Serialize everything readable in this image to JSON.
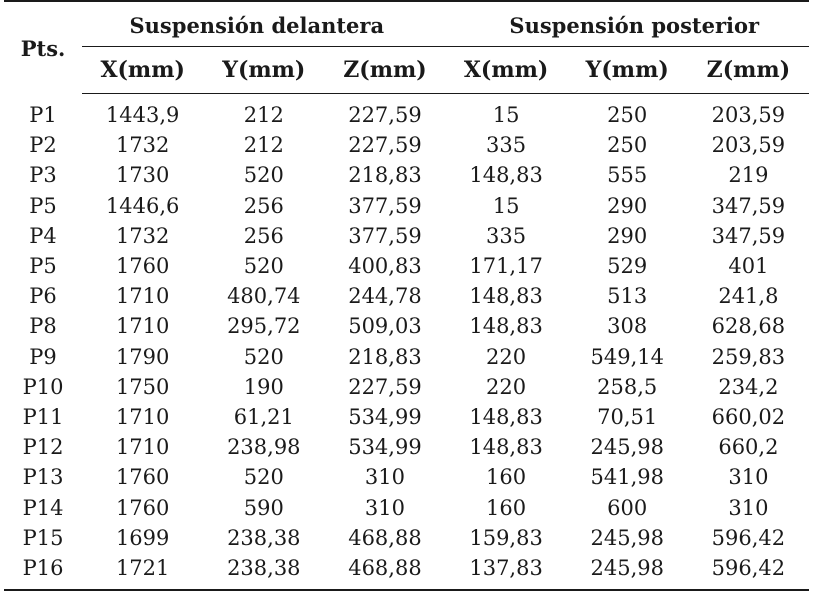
{
  "table": {
    "pts_header": "Pts.",
    "group_front": "Suspensión delantera",
    "group_rear": "Suspensión posterior",
    "sub_headers": [
      "X(mm)",
      "Y(mm)",
      "Z(mm)",
      "X(mm)",
      "Y(mm)",
      "Z(mm)"
    ],
    "rows": [
      [
        "P1",
        "1443,9",
        "212",
        "227,59",
        "15",
        "250",
        "203,59"
      ],
      [
        "P2",
        "1732",
        "212",
        "227,59",
        "335",
        "250",
        "203,59"
      ],
      [
        "P3",
        "1730",
        "520",
        "218,83",
        "148,83",
        "555",
        "219"
      ],
      [
        "P5",
        "1446,6",
        "256",
        "377,59",
        "15",
        "290",
        "347,59"
      ],
      [
        "P4",
        "1732",
        "256",
        "377,59",
        "335",
        "290",
        "347,59"
      ],
      [
        "P5",
        "1760",
        "520",
        "400,83",
        "171,17",
        "529",
        "401"
      ],
      [
        "P6",
        "1710",
        "480,74",
        "244,78",
        "148,83",
        "513",
        "241,8"
      ],
      [
        "P8",
        "1710",
        "295,72",
        "509,03",
        "148,83",
        "308",
        "628,68"
      ],
      [
        "P9",
        "1790",
        "520",
        "218,83",
        "220",
        "549,14",
        "259,83"
      ],
      [
        "P10",
        "1750",
        "190",
        "227,59",
        "220",
        "258,5",
        "234,2"
      ],
      [
        "P11",
        "1710",
        "61,21",
        "534,99",
        "148,83",
        "70,51",
        "660,02"
      ],
      [
        "P12",
        "1710",
        "238,98",
        "534,99",
        "148,83",
        "245,98",
        "660,2"
      ],
      [
        "P13",
        "1760",
        "520",
        "310",
        "160",
        "541,98",
        "310"
      ],
      [
        "P14",
        "1760",
        "590",
        "310",
        "160",
        "600",
        "310"
      ],
      [
        "P15",
        "1699",
        "238,38",
        "468,88",
        "159,83",
        "245,98",
        "596,42"
      ],
      [
        "P16",
        "1721",
        "238,38",
        "468,88",
        "137,83",
        "245,98",
        "596,42"
      ]
    ]
  }
}
